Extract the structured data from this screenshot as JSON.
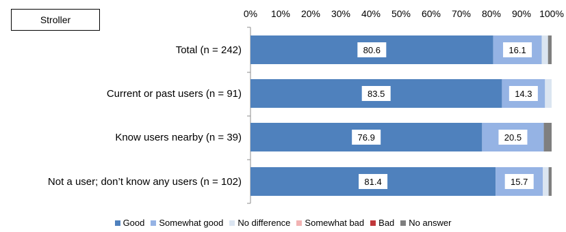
{
  "box_label": "Stroller",
  "chart_data": {
    "type": "bar",
    "orientation": "horizontal",
    "stacked": true,
    "xlim": [
      0,
      100
    ],
    "x_ticks": [
      "0%",
      "10%",
      "20%",
      "30%",
      "40%",
      "50%",
      "60%",
      "70%",
      "80%",
      "90%",
      "100%"
    ],
    "categories": [
      "Total (n = 242)",
      "Current or past users (n = 91)",
      "Know users nearby (n = 39)",
      "Not a user; don’t know any users (n = 102)"
    ],
    "series": [
      {
        "name": "Good",
        "color": "#4f81bd",
        "values": [
          80.6,
          83.5,
          76.9,
          81.4
        ],
        "labels": [
          "80.6",
          "83.5",
          "76.9",
          "81.4"
        ]
      },
      {
        "name": "Somewhat good",
        "color": "#95b3e4",
        "values": [
          16.1,
          14.3,
          20.5,
          15.7
        ],
        "labels": [
          "16.1",
          "14.3",
          "20.5",
          "15.7"
        ]
      },
      {
        "name": "No difference",
        "color": "#dbe5f1",
        "values": [
          2.1,
          2.2,
          0.0,
          1.9
        ],
        "labels": [
          "",
          "",
          "",
          ""
        ]
      },
      {
        "name": "Somewhat bad",
        "color": "#f2b3b3",
        "values": [
          0.0,
          0.0,
          0.0,
          0.0
        ],
        "labels": [
          "",
          "",
          "",
          ""
        ]
      },
      {
        "name": "Bad",
        "color": "#c0383b",
        "values": [
          0.0,
          0.0,
          0.0,
          0.0
        ],
        "labels": [
          "",
          "",
          "",
          ""
        ]
      },
      {
        "name": "No answer",
        "color": "#7f7f7f",
        "values": [
          1.2,
          0.0,
          2.6,
          1.0
        ],
        "labels": [
          "",
          "",
          "",
          ""
        ]
      }
    ],
    "legend_position": "bottom",
    "grid": false
  }
}
